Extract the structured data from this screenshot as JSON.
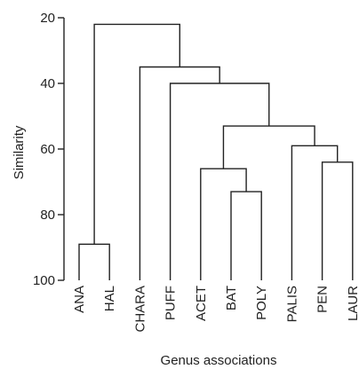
{
  "chart_data": {
    "type": "dendrogram",
    "xlabel": "Genus associations",
    "ylabel": "Similarity",
    "ylim": [
      20,
      100
    ],
    "yticks": [
      20,
      40,
      60,
      80,
      100
    ],
    "y_inverted": true,
    "leaves": [
      "ANA",
      "HAL",
      "CHARA",
      "PUFF",
      "ACET",
      "BAT",
      "POLY",
      "PALIS",
      "PEN",
      "LAUR"
    ],
    "merges": [
      {
        "id": "m_ana_hal",
        "left": "ANA",
        "right": "HAL",
        "similarity": 89
      },
      {
        "id": "m_bat_poly",
        "left": "BAT",
        "right": "POLY",
        "similarity": 73
      },
      {
        "id": "m_pen_laur",
        "left": "PEN",
        "right": "LAUR",
        "similarity": 64
      },
      {
        "id": "m_acet_bp",
        "left": "ACET",
        "right": "m_bat_poly",
        "similarity": 66
      },
      {
        "id": "m_palis_pl",
        "left": "PALIS",
        "right": "m_pen_laur",
        "similarity": 59
      },
      {
        "id": "m_abp_ppl",
        "left": "m_acet_bp",
        "right": "m_palis_pl",
        "similarity": 53
      },
      {
        "id": "m_puff_rest",
        "left": "PUFF",
        "right": "m_abp_ppl",
        "similarity": 40
      },
      {
        "id": "m_chara_rest",
        "left": "CHARA",
        "right": "m_puff_rest",
        "similarity": 35
      },
      {
        "id": "m_root",
        "left": "m_ana_hal",
        "right": "m_chara_rest",
        "similarity": 22
      }
    ]
  }
}
